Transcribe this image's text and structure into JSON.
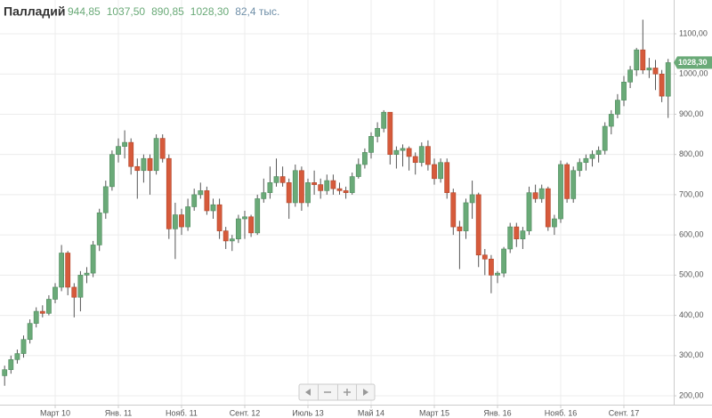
{
  "chart_data": {
    "type": "candlestick",
    "title": "Палладий",
    "header_values": [
      "944,85",
      "1037,50",
      "890,85",
      "1028,30"
    ],
    "volume_label": "82,4 тыс.",
    "last_price_label": "1028,30",
    "up_color": "#6aaa78",
    "down_color": "#d65a3b",
    "grid": true,
    "ylim": [
      178,
      1184
    ],
    "yticks": [
      {
        "value": 200,
        "label": "200,00"
      },
      {
        "value": 300,
        "label": "300,00"
      },
      {
        "value": 400,
        "label": "400,00"
      },
      {
        "value": 500,
        "label": "500,00"
      },
      {
        "value": 600,
        "label": "600,00"
      },
      {
        "value": 700,
        "label": "700,00"
      },
      {
        "value": 800,
        "label": "800,00"
      },
      {
        "value": 900,
        "label": "900,00"
      },
      {
        "value": 1000,
        "label": "1000,00"
      },
      {
        "value": 1100,
        "label": "1100,00"
      }
    ],
    "categories": [
      null,
      null,
      null,
      null,
      null,
      null,
      null,
      null,
      "Март 10",
      null,
      null,
      null,
      null,
      null,
      null,
      null,
      null,
      null,
      "Янв. 11",
      null,
      null,
      null,
      null,
      null,
      null,
      null,
      null,
      null,
      "Нояб. 11",
      null,
      null,
      null,
      null,
      null,
      null,
      null,
      null,
      null,
      "Сент. 12",
      null,
      null,
      null,
      null,
      null,
      null,
      null,
      null,
      null,
      "Июль 13",
      null,
      null,
      null,
      null,
      null,
      null,
      null,
      null,
      null,
      "Май 14",
      null,
      null,
      null,
      null,
      null,
      null,
      null,
      null,
      null,
      "Март 15",
      null,
      null,
      null,
      null,
      null,
      null,
      null,
      null,
      null,
      "Янв. 16",
      null,
      null,
      null,
      null,
      null,
      null,
      null,
      null,
      null,
      "Нояб. 16",
      null,
      null,
      null,
      null,
      null,
      null,
      null,
      null,
      null,
      "Сент. 17",
      null,
      null,
      null,
      null,
      null,
      null,
      null
    ],
    "ohlc": [
      [
        250,
        275,
        225,
        265
      ],
      [
        265,
        300,
        255,
        290
      ],
      [
        290,
        315,
        280,
        305
      ],
      [
        305,
        350,
        295,
        340
      ],
      [
        340,
        390,
        330,
        380
      ],
      [
        380,
        420,
        370,
        410
      ],
      [
        410,
        425,
        395,
        405
      ],
      [
        405,
        450,
        400,
        440
      ],
      [
        440,
        480,
        430,
        470
      ],
      [
        470,
        575,
        460,
        555
      ],
      [
        555,
        560,
        450,
        470
      ],
      [
        470,
        480,
        395,
        445
      ],
      [
        445,
        510,
        410,
        500
      ],
      [
        500,
        520,
        480,
        505
      ],
      [
        505,
        585,
        495,
        575
      ],
      [
        575,
        665,
        560,
        655
      ],
      [
        655,
        735,
        640,
        720
      ],
      [
        720,
        810,
        710,
        800
      ],
      [
        800,
        840,
        780,
        820
      ],
      [
        820,
        860,
        790,
        830
      ],
      [
        830,
        840,
        750,
        770
      ],
      [
        770,
        790,
        690,
        760
      ],
      [
        760,
        800,
        730,
        790
      ],
      [
        790,
        800,
        700,
        760
      ],
      [
        760,
        850,
        750,
        840
      ],
      [
        840,
        850,
        780,
        790
      ],
      [
        790,
        800,
        590,
        615
      ],
      [
        615,
        680,
        540,
        650
      ],
      [
        650,
        665,
        600,
        620
      ],
      [
        620,
        690,
        610,
        670
      ],
      [
        670,
        715,
        660,
        700
      ],
      [
        700,
        730,
        690,
        710
      ],
      [
        710,
        720,
        650,
        660
      ],
      [
        660,
        690,
        640,
        675
      ],
      [
        675,
        690,
        590,
        610
      ],
      [
        610,
        620,
        565,
        585
      ],
      [
        585,
        600,
        560,
        590
      ],
      [
        590,
        650,
        580,
        640
      ],
      [
        640,
        660,
        590,
        645
      ],
      [
        645,
        650,
        595,
        605
      ],
      [
        605,
        700,
        600,
        690
      ],
      [
        690,
        740,
        680,
        705
      ],
      [
        705,
        770,
        690,
        730
      ],
      [
        730,
        790,
        720,
        745
      ],
      [
        745,
        770,
        720,
        730
      ],
      [
        730,
        740,
        640,
        680
      ],
      [
        680,
        775,
        670,
        760
      ],
      [
        760,
        770,
        660,
        680
      ],
      [
        680,
        740,
        670,
        730
      ],
      [
        730,
        760,
        700,
        725
      ],
      [
        725,
        740,
        690,
        710
      ],
      [
        710,
        750,
        700,
        735
      ],
      [
        735,
        750,
        700,
        715
      ],
      [
        715,
        730,
        700,
        710
      ],
      [
        710,
        720,
        690,
        705
      ],
      [
        705,
        755,
        700,
        745
      ],
      [
        745,
        790,
        740,
        775
      ],
      [
        775,
        815,
        765,
        805
      ],
      [
        805,
        855,
        790,
        845
      ],
      [
        845,
        880,
        830,
        865
      ],
      [
        865,
        910,
        855,
        905
      ],
      [
        905,
        905,
        775,
        800
      ],
      [
        800,
        820,
        765,
        810
      ],
      [
        810,
        825,
        770,
        815
      ],
      [
        815,
        820,
        760,
        795
      ],
      [
        795,
        805,
        750,
        780
      ],
      [
        780,
        830,
        770,
        820
      ],
      [
        820,
        835,
        760,
        775
      ],
      [
        775,
        790,
        725,
        740
      ],
      [
        740,
        790,
        730,
        780
      ],
      [
        780,
        790,
        690,
        705
      ],
      [
        705,
        715,
        600,
        620
      ],
      [
        620,
        635,
        515,
        610
      ],
      [
        610,
        690,
        590,
        680
      ],
      [
        680,
        735,
        640,
        700
      ],
      [
        700,
        705,
        520,
        550
      ],
      [
        550,
        565,
        500,
        540
      ],
      [
        540,
        550,
        455,
        500
      ],
      [
        500,
        510,
        480,
        505
      ],
      [
        505,
        570,
        495,
        565
      ],
      [
        565,
        630,
        555,
        620
      ],
      [
        620,
        630,
        570,
        590
      ],
      [
        590,
        620,
        565,
        610
      ],
      [
        610,
        720,
        600,
        705
      ],
      [
        705,
        725,
        680,
        690
      ],
      [
        690,
        725,
        680,
        715
      ],
      [
        715,
        720,
        610,
        620
      ],
      [
        620,
        650,
        600,
        640
      ],
      [
        640,
        785,
        630,
        775
      ],
      [
        775,
        780,
        680,
        690
      ],
      [
        690,
        770,
        680,
        760
      ],
      [
        760,
        790,
        745,
        780
      ],
      [
        780,
        800,
        760,
        790
      ],
      [
        790,
        810,
        770,
        800
      ],
      [
        800,
        820,
        780,
        810
      ],
      [
        810,
        880,
        800,
        870
      ],
      [
        870,
        910,
        850,
        900
      ],
      [
        900,
        950,
        890,
        935
      ],
      [
        935,
        995,
        920,
        980
      ],
      [
        980,
        1020,
        965,
        1010
      ],
      [
        1010,
        1065,
        995,
        1060
      ],
      [
        1060,
        1135,
        1000,
        1010
      ],
      [
        1010,
        1040,
        990,
        1015
      ],
      [
        1015,
        1035,
        960,
        1000
      ],
      [
        1000,
        1010,
        930,
        945
      ],
      [
        944.85,
        1037.5,
        890.85,
        1028.3
      ]
    ]
  }
}
